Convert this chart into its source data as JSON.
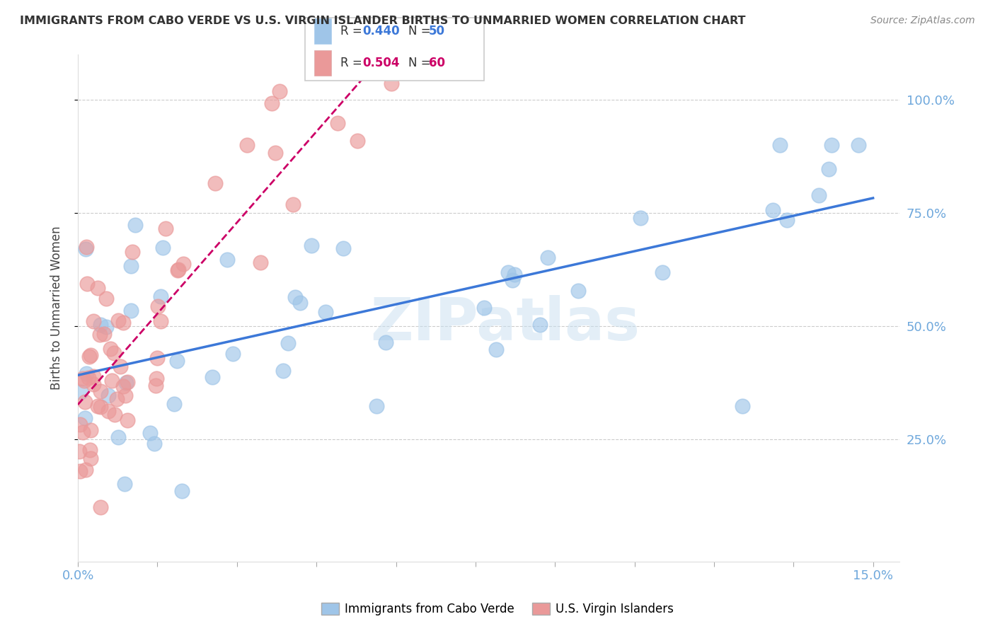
{
  "title": "IMMIGRANTS FROM CABO VERDE VS U.S. VIRGIN ISLANDER BIRTHS TO UNMARRIED WOMEN CORRELATION CHART",
  "source": "Source: ZipAtlas.com",
  "ylabel": "Births to Unmarried Women",
  "legend_label1": "Immigrants from Cabo Verde",
  "legend_label2": "U.S. Virgin Islanders",
  "R1": 0.44,
  "N1": 50,
  "R2": 0.504,
  "N2": 60,
  "color_blue": "#9fc5e8",
  "color_pink": "#ea9999",
  "color_blue_line": "#3c78d8",
  "color_pink_line": "#cc0066",
  "color_tick": "#6fa8dc",
  "watermark": "ZIPatlas",
  "xlim": [
    0.0,
    0.155
  ],
  "ylim": [
    -0.02,
    1.1
  ],
  "yticks": [
    0.25,
    0.5,
    0.75,
    1.0
  ],
  "ytick_labels": [
    "25.0%",
    "50.0%",
    "75.0%",
    "100.0%"
  ],
  "xtick_labels_show": [
    "0.0%",
    "15.0%"
  ],
  "grid_color": "#cccccc",
  "background": "#ffffff"
}
